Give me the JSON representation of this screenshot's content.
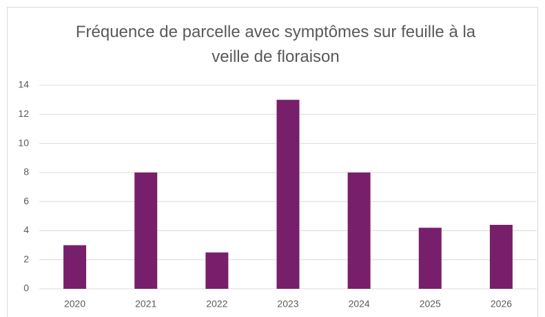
{
  "chart_data": {
    "type": "bar",
    "title": "Fréquence de parcelle avec symptômes sur feuille à la veille de floraison",
    "categories": [
      "2020",
      "2021",
      "2022",
      "2023",
      "2024",
      "2025",
      "2026"
    ],
    "values": [
      3,
      8,
      2.5,
      13,
      8,
      4.2,
      4.4
    ],
    "color": "#781f6b",
    "ylim": [
      0,
      14
    ],
    "yticks": [
      0,
      2,
      4,
      6,
      8,
      10,
      12,
      14
    ],
    "grid": true
  }
}
